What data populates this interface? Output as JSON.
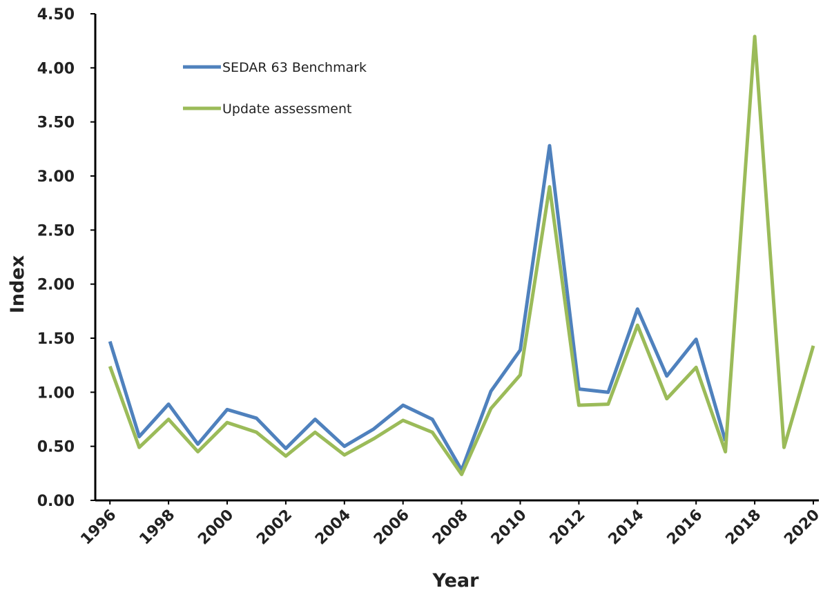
{
  "chart_data": {
    "type": "line",
    "x_label": "Year",
    "y_label": "Index",
    "x": [
      1996,
      1997,
      1998,
      1999,
      2000,
      2001,
      2002,
      2003,
      2004,
      2005,
      2006,
      2007,
      2008,
      2009,
      2010,
      2011,
      2012,
      2013,
      2014,
      2015,
      2016,
      2017,
      2018,
      2019,
      2020
    ],
    "series": [
      {
        "name": "SEDAR 63 Benchmark",
        "color": "#4f81bd",
        "values": [
          1.47,
          0.59,
          0.89,
          0.52,
          0.84,
          0.76,
          0.48,
          0.75,
          0.5,
          0.66,
          0.88,
          0.75,
          0.28,
          1.01,
          1.39,
          3.28,
          1.03,
          1.0,
          1.77,
          1.15,
          1.49,
          0.55,
          null,
          null,
          null
        ]
      },
      {
        "name": "Update assessment",
        "color": "#9bbb59",
        "values": [
          1.24,
          0.49,
          0.75,
          0.45,
          0.72,
          0.63,
          0.41,
          0.63,
          0.42,
          0.57,
          0.74,
          0.63,
          0.24,
          0.85,
          1.16,
          2.9,
          0.88,
          0.89,
          1.62,
          0.94,
          1.23,
          0.45,
          4.29,
          0.49,
          1.43
        ]
      }
    ],
    "xlim": [
      1995.5,
      2020
    ],
    "xticks": [
      1996,
      1998,
      2000,
      2002,
      2004,
      2006,
      2008,
      2010,
      2012,
      2014,
      2016,
      2018,
      2020
    ],
    "ylim": [
      0,
      4.5
    ],
    "yticks": [
      {
        "value": 0,
        "label": "0.00"
      },
      {
        "value": 0.5,
        "label": "0.50"
      },
      {
        "value": 1,
        "label": "1.00"
      },
      {
        "value": 1.5,
        "label": "1.50"
      },
      {
        "value": 2,
        "label": "2.00"
      },
      {
        "value": 2.5,
        "label": "2.50"
      },
      {
        "value": 3,
        "label": "3.00"
      },
      {
        "value": 3.5,
        "label": "3.50"
      },
      {
        "value": 4,
        "label": "4.00"
      },
      {
        "value": 4.5,
        "label": "4.50"
      }
    ],
    "grid": false,
    "legend_position": "upper left"
  }
}
